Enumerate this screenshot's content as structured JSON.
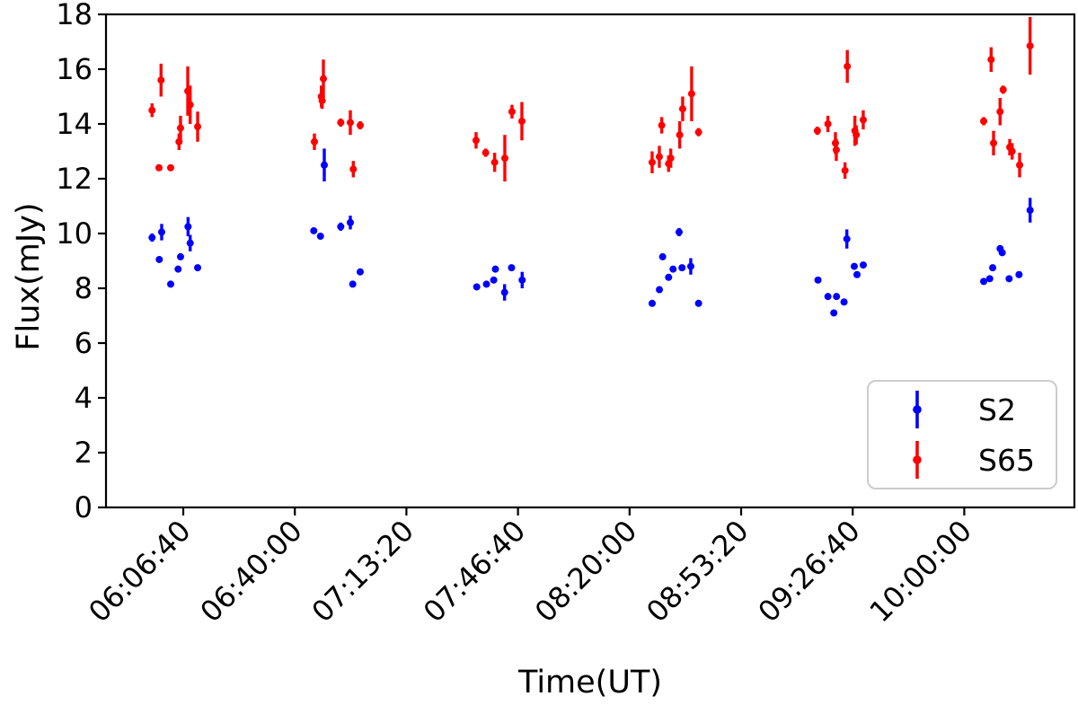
{
  "figure": {
    "background": "#ffffff"
  },
  "chart_data": {
    "type": "scatter",
    "title": "",
    "xlabel": "Time(UT)",
    "ylabel": "Flux(mJy)",
    "x_tick_labels": [
      "06:06:40",
      "06:40:00",
      "07:13:20",
      "07:46:40",
      "08:20:00",
      "08:53:20",
      "09:26:40",
      "10:00:00"
    ],
    "y_ticks": [
      0,
      2,
      4,
      6,
      8,
      10,
      12,
      14,
      16,
      18
    ],
    "ylim": [
      0,
      18
    ],
    "xlim_time": [
      "05:43:35",
      "10:32:54"
    ],
    "grid": false,
    "axis_color": "#000000",
    "legend": {
      "position": "lower right",
      "entries": [
        "S2",
        "S65"
      ]
    },
    "points_format": "[time_UT, flux_mJy, err_mJy]",
    "series": [
      {
        "name": "S2",
        "color": "#0000ff",
        "marker": "point-with-errorbar",
        "points": [
          [
            "05:57:21",
            9.85,
            0.15
          ],
          [
            "05:59:30",
            9.05,
            0.1
          ],
          [
            "06:00:13",
            10.05,
            0.3
          ],
          [
            "06:02:54",
            8.15,
            0.1
          ],
          [
            "06:05:08",
            8.7,
            0.1
          ],
          [
            "06:05:51",
            9.15,
            0.1
          ],
          [
            "06:08:06",
            10.25,
            0.35
          ],
          [
            "06:08:44",
            9.65,
            0.3
          ],
          [
            "06:10:58",
            8.75,
            0.1
          ],
          [
            "06:45:40",
            10.1,
            0.1
          ],
          [
            "06:47:39",
            9.9,
            0.1
          ],
          [
            "06:48:48",
            12.5,
            0.6
          ],
          [
            "06:53:43",
            10.25,
            0.15
          ],
          [
            "06:56:35",
            10.4,
            0.25
          ],
          [
            "06:57:18",
            8.15,
            0.1
          ],
          [
            "06:59:32",
            8.6,
            0.1
          ],
          [
            "07:34:20",
            8.05,
            0.1
          ],
          [
            "07:37:15",
            8.15,
            0.1
          ],
          [
            "07:39:25",
            8.3,
            0.1
          ],
          [
            "07:39:55",
            8.7,
            0.1
          ],
          [
            "07:42:40",
            7.85,
            0.3
          ],
          [
            "07:44:45",
            8.75,
            0.1
          ],
          [
            "07:47:55",
            8.3,
            0.3
          ],
          [
            "08:26:45",
            7.45,
            0.1
          ],
          [
            "08:28:55",
            7.95,
            0.1
          ],
          [
            "08:29:53",
            9.15,
            0.1
          ],
          [
            "08:31:40",
            8.4,
            0.1
          ],
          [
            "08:33:00",
            8.7,
            0.1
          ],
          [
            "08:34:48",
            10.05,
            0.15
          ],
          [
            "08:35:41",
            8.75,
            0.1
          ],
          [
            "08:38:17",
            8.8,
            0.3
          ],
          [
            "08:40:37",
            7.45,
            0.1
          ],
          [
            "09:16:18",
            8.3,
            0.1
          ],
          [
            "09:19:16",
            7.7,
            0.1
          ],
          [
            "09:21:02",
            7.1,
            0.1
          ],
          [
            "09:21:50",
            7.7,
            0.1
          ],
          [
            "09:24:05",
            7.5,
            0.1
          ],
          [
            "09:24:55",
            9.8,
            0.35
          ],
          [
            "09:27:08",
            8.8,
            0.1
          ],
          [
            "09:27:57",
            8.5,
            0.1
          ],
          [
            "09:29:49",
            8.85,
            0.1
          ],
          [
            "10:05:48",
            8.25,
            0.1
          ],
          [
            "10:07:36",
            8.35,
            0.1
          ],
          [
            "10:08:29",
            8.75,
            0.1
          ],
          [
            "10:10:42",
            9.45,
            0.1
          ],
          [
            "10:11:20",
            9.3,
            0.1
          ],
          [
            "10:13:24",
            8.35,
            0.1
          ],
          [
            "10:16:21",
            8.5,
            0.1
          ],
          [
            "10:19:40",
            10.85,
            0.45
          ]
        ]
      },
      {
        "name": "S65",
        "color": "#ff0000",
        "marker": "point-with-errorbar",
        "points": [
          [
            "05:57:21",
            14.5,
            0.25
          ],
          [
            "05:59:25",
            12.4,
            0.1
          ],
          [
            "06:00:02",
            15.6,
            0.6
          ],
          [
            "06:02:54",
            12.4,
            0.1
          ],
          [
            "06:05:24",
            13.35,
            0.3
          ],
          [
            "06:05:51",
            13.85,
            0.45
          ],
          [
            "06:08:01",
            15.2,
            0.9
          ],
          [
            "06:08:44",
            14.7,
            0.7
          ],
          [
            "06:10:58",
            13.9,
            0.55
          ],
          [
            "06:45:51",
            13.35,
            0.3
          ],
          [
            "06:47:55",
            15.0,
            0.4
          ],
          [
            "06:48:10",
            14.85,
            0.3
          ],
          [
            "06:48:32",
            15.65,
            0.7
          ],
          [
            "06:53:43",
            14.05,
            0.15
          ],
          [
            "06:56:35",
            14.05,
            0.45
          ],
          [
            "06:57:28",
            12.35,
            0.3
          ],
          [
            "06:59:32",
            13.95,
            0.15
          ],
          [
            "07:34:09",
            13.4,
            0.3
          ],
          [
            "07:37:01",
            12.95,
            0.15
          ],
          [
            "07:39:42",
            12.6,
            0.35
          ],
          [
            "07:42:44",
            12.75,
            0.85
          ],
          [
            "07:44:53",
            14.45,
            0.25
          ],
          [
            "07:47:50",
            14.1,
            0.7
          ],
          [
            "08:26:45",
            12.6,
            0.4
          ],
          [
            "08:28:54",
            12.8,
            0.4
          ],
          [
            "08:29:37",
            13.95,
            0.3
          ],
          [
            "08:31:40",
            12.55,
            0.3
          ],
          [
            "08:32:18",
            12.75,
            0.35
          ],
          [
            "08:34:59",
            13.6,
            0.5
          ],
          [
            "08:35:52",
            14.55,
            0.45
          ],
          [
            "08:38:33",
            15.1,
            1.0
          ],
          [
            "08:40:37",
            13.7,
            0.15
          ],
          [
            "09:16:07",
            13.75,
            0.15
          ],
          [
            "09:19:16",
            14.0,
            0.3
          ],
          [
            "09:21:30",
            13.3,
            0.4
          ],
          [
            "09:21:46",
            13.05,
            0.4
          ],
          [
            "09:24:22",
            12.3,
            0.3
          ],
          [
            "09:25:03",
            16.1,
            0.6
          ],
          [
            "09:27:19",
            13.75,
            0.55
          ],
          [
            "09:27:44",
            13.6,
            0.35
          ],
          [
            "09:29:49",
            14.15,
            0.35
          ],
          [
            "10:05:48",
            14.1,
            0.15
          ],
          [
            "10:08:01",
            16.35,
            0.45
          ],
          [
            "10:08:45",
            13.3,
            0.45
          ],
          [
            "10:10:42",
            14.45,
            0.5
          ],
          [
            "10:11:37",
            15.25,
            0.15
          ],
          [
            "10:13:35",
            13.15,
            0.3
          ],
          [
            "10:14:18",
            13.0,
            0.3
          ],
          [
            "10:16:32",
            12.5,
            0.45
          ],
          [
            "10:19:40",
            16.85,
            1.05
          ]
        ]
      }
    ]
  }
}
